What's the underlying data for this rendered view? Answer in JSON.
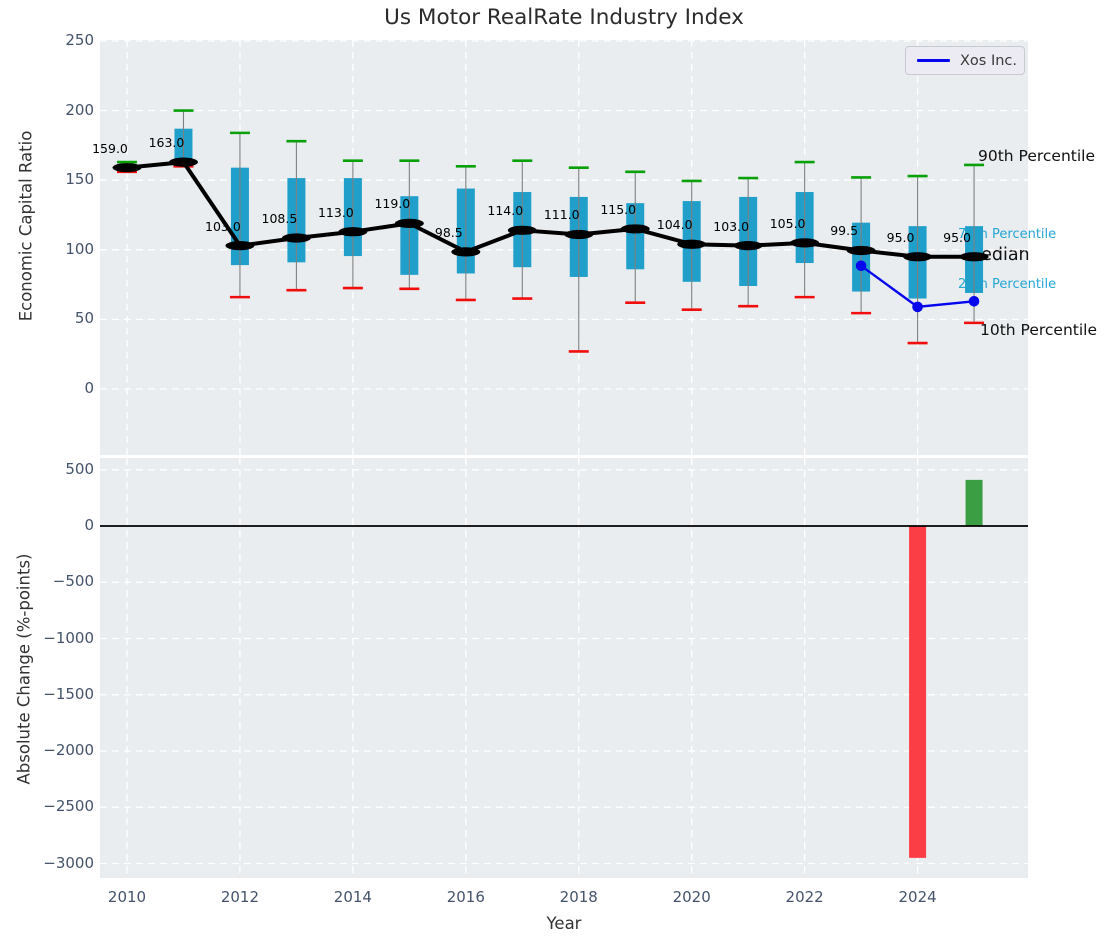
{
  "title": "Us Motor RealRate Industry Index",
  "legend": {
    "label": "Xos Inc."
  },
  "annotations": {
    "p90": "90th Percentile",
    "p75": "75th Percentile",
    "median": "Median",
    "p25": "25th Percentile",
    "p10": "10th Percentile"
  },
  "colors": {
    "box": "#1f9fca",
    "whisker": "#808080",
    "cap_high": "#0aa00a",
    "cap_low": "#f20d0d",
    "median": "#000000",
    "xos_line": "#0505ee",
    "bar_up": "#3b9e42",
    "bar_down": "#fb3e45",
    "axes_bg": "#e9edf0",
    "grid": "#ffffff",
    "tick": "#44536a",
    "annotation_blue": "#25a6d4",
    "zero_line": "#000000"
  },
  "chart_data": [
    {
      "type": "boxplot+line",
      "title": "Us Motor RealRate Industry Index",
      "ylabel": "Economic Capital Ratio",
      "ylim": [
        -47,
        251
      ],
      "grid": true,
      "legend_position": "upper right",
      "yticks": [
        {
          "v": 250,
          "label": "250"
        },
        {
          "v": 200,
          "label": "200"
        },
        {
          "v": 150,
          "label": "150"
        },
        {
          "v": 100,
          "label": "100"
        },
        {
          "v": 50,
          "label": "50"
        },
        {
          "v": 0,
          "label": "0"
        }
      ],
      "xticks": [
        {
          "v": 2010,
          "label": "2010"
        },
        {
          "v": 2012,
          "label": "2012"
        },
        {
          "v": 2014,
          "label": "2014"
        },
        {
          "v": 2016,
          "label": "2016"
        },
        {
          "v": 2018,
          "label": "2018"
        },
        {
          "v": 2020,
          "label": "2020"
        },
        {
          "v": 2022,
          "label": "2022"
        },
        {
          "v": 2024,
          "label": "2024"
        }
      ],
      "boxes": [
        {
          "year": 2010,
          "p10": 156,
          "p25": 157,
          "median": 159,
          "p75": 161,
          "p90": 163,
          "label": "159.0"
        },
        {
          "year": 2011,
          "p10": 160,
          "p25": 161,
          "median": 163,
          "p75": 187,
          "p90": 200,
          "label": "163.0"
        },
        {
          "year": 2012,
          "p10": 66,
          "p25": 89,
          "median": 103,
          "p75": 159,
          "p90": 184,
          "label": "103.0"
        },
        {
          "year": 2013,
          "p10": 71,
          "p25": 91,
          "median": 108.5,
          "p75": 151.5,
          "p90": 178,
          "label": "108.5"
        },
        {
          "year": 2014,
          "p10": 72.5,
          "p25": 95.5,
          "median": 113,
          "p75": 151.5,
          "p90": 164,
          "label": "113.0"
        },
        {
          "year": 2015,
          "p10": 72,
          "p25": 82,
          "median": 119,
          "p75": 138.5,
          "p90": 164,
          "label": "119.0"
        },
        {
          "year": 2016,
          "p10": 64,
          "p25": 83,
          "median": 98.5,
          "p75": 144,
          "p90": 160,
          "label": "98.5"
        },
        {
          "year": 2017,
          "p10": 65,
          "p25": 87.5,
          "median": 114,
          "p75": 141.5,
          "p90": 164,
          "label": "114.0"
        },
        {
          "year": 2018,
          "p10": 27,
          "p25": 80.5,
          "median": 111,
          "p75": 138,
          "p90": 159,
          "label": "111.0"
        },
        {
          "year": 2019,
          "p10": 62,
          "p25": 86,
          "median": 115,
          "p75": 133.5,
          "p90": 156,
          "label": "115.0"
        },
        {
          "year": 2020,
          "p10": 57,
          "p25": 77,
          "median": 104,
          "p75": 135,
          "p90": 149.5,
          "label": "104.0"
        },
        {
          "year": 2021,
          "p10": 59.5,
          "p25": 74,
          "median": 103,
          "p75": 138,
          "p90": 151.5,
          "label": "103.0"
        },
        {
          "year": 2022,
          "p10": 66,
          "p25": 90.5,
          "median": 105,
          "p75": 141.5,
          "p90": 163,
          "label": "105.0"
        },
        {
          "year": 2023,
          "p10": 54.5,
          "p25": 70,
          "median": 99.5,
          "p75": 119.5,
          "p90": 152,
          "label": "99.5"
        },
        {
          "year": 2024,
          "p10": 33,
          "p25": 65,
          "median": 95,
          "p75": 117,
          "p90": 153,
          "label": "95.0"
        },
        {
          "year": 2025,
          "p10": 47.5,
          "p25": 69,
          "median": 95,
          "p75": 117,
          "p90": 161,
          "label": "95.0"
        }
      ],
      "series": [
        {
          "name": "Xos Inc.",
          "x": [
            2023,
            2024,
            2025
          ],
          "y": [
            88.5,
            59,
            63
          ]
        }
      ]
    },
    {
      "type": "bar",
      "ylabel": "Absolute Change (%-points)",
      "xlabel": "Year",
      "ylim": [
        -3145,
        600
      ],
      "grid": true,
      "yticks": [
        {
          "v": 500,
          "label": "500"
        },
        {
          "v": 0,
          "label": "0"
        },
        {
          "v": -500,
          "label": "−500"
        },
        {
          "v": -1000,
          "label": "−1000"
        },
        {
          "v": -1500,
          "label": "−1500"
        },
        {
          "v": -2000,
          "label": "−2000"
        },
        {
          "v": -2500,
          "label": "−2500"
        },
        {
          "v": -3000,
          "label": "−3000"
        }
      ],
      "xticks": [
        {
          "v": 2010,
          "label": "2010"
        },
        {
          "v": 2012,
          "label": "2012"
        },
        {
          "v": 2014,
          "label": "2014"
        },
        {
          "v": 2016,
          "label": "2016"
        },
        {
          "v": 2018,
          "label": "2018"
        },
        {
          "v": 2020,
          "label": "2020"
        },
        {
          "v": 2022,
          "label": "2022"
        },
        {
          "v": 2024,
          "label": "2024"
        }
      ],
      "bars": [
        {
          "year": 2024,
          "value": -2950,
          "direction": "down"
        },
        {
          "year": 2025,
          "value": 410,
          "direction": "up"
        }
      ]
    }
  ]
}
